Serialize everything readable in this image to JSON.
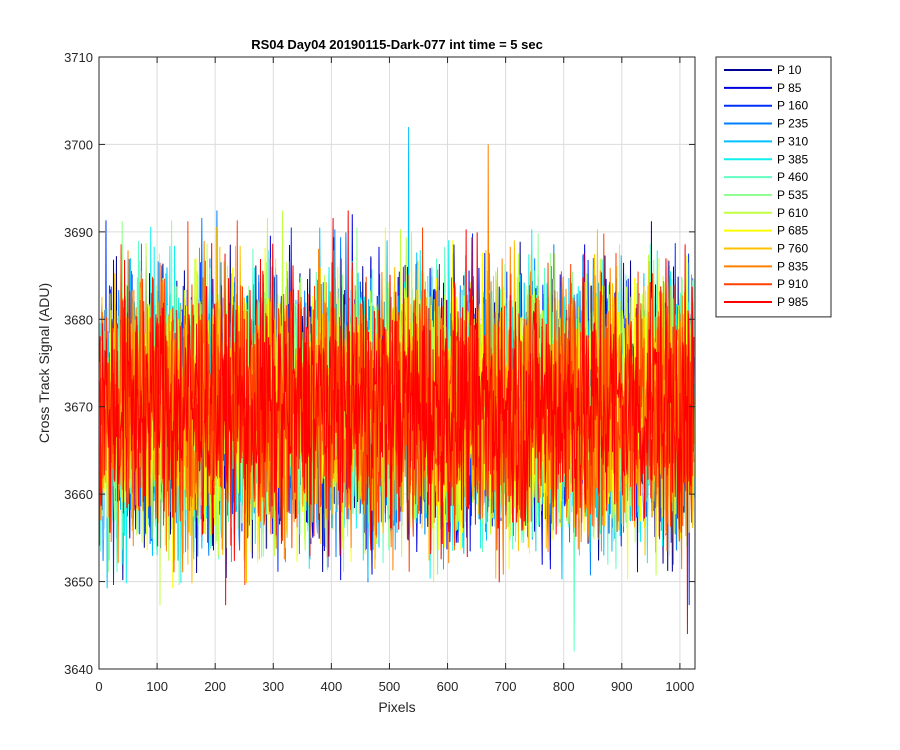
{
  "chart_data": {
    "type": "line",
    "title": "RS04 Day04 20190115-Dark-077 int time = 5 sec",
    "xlabel": "Pixels",
    "ylabel": "Cross Track Signal (ADU)",
    "xlim": [
      0,
      1026
    ],
    "ylim": [
      3640,
      3710
    ],
    "xticks": [
      0,
      100,
      200,
      300,
      400,
      500,
      600,
      700,
      800,
      900,
      1000
    ],
    "yticks": [
      3640,
      3650,
      3660,
      3670,
      3680,
      3690,
      3700,
      3710
    ],
    "grid": true,
    "legend_position": "outside-right",
    "series_summary": {
      "n_points": 1024,
      "mean": 3670,
      "typical_min": 3647,
      "typical_max": 3693
    },
    "series": [
      {
        "name": "P 10",
        "color": "#00008F"
      },
      {
        "name": "P 85",
        "color": "#0000DF"
      },
      {
        "name": "P 160",
        "color": "#0030FF"
      },
      {
        "name": "P 235",
        "color": "#0080FF"
      },
      {
        "name": "P 310",
        "color": "#00C0FF"
      },
      {
        "name": "P 385",
        "color": "#10F0F0"
      },
      {
        "name": "P 460",
        "color": "#60FFC0"
      },
      {
        "name": "P 535",
        "color": "#90FF90"
      },
      {
        "name": "P 610",
        "color": "#C0FF40"
      },
      {
        "name": "P 685",
        "color": "#FFFF00"
      },
      {
        "name": "P 760",
        "color": "#FFC000"
      },
      {
        "name": "P 835",
        "color": "#FF8000"
      },
      {
        "name": "P 910",
        "color": "#FF4000"
      },
      {
        "name": "P 985",
        "color": "#FF0000"
      }
    ],
    "annotated_extremes": [
      {
        "series": "P 310",
        "x": 533,
        "y": 3702
      },
      {
        "series": "P 835",
        "x": 670,
        "y": 3700
      },
      {
        "series": "P 460",
        "x": 818,
        "y": 3642
      },
      {
        "series": "P 985",
        "x": 1013,
        "y": 3644
      }
    ]
  }
}
